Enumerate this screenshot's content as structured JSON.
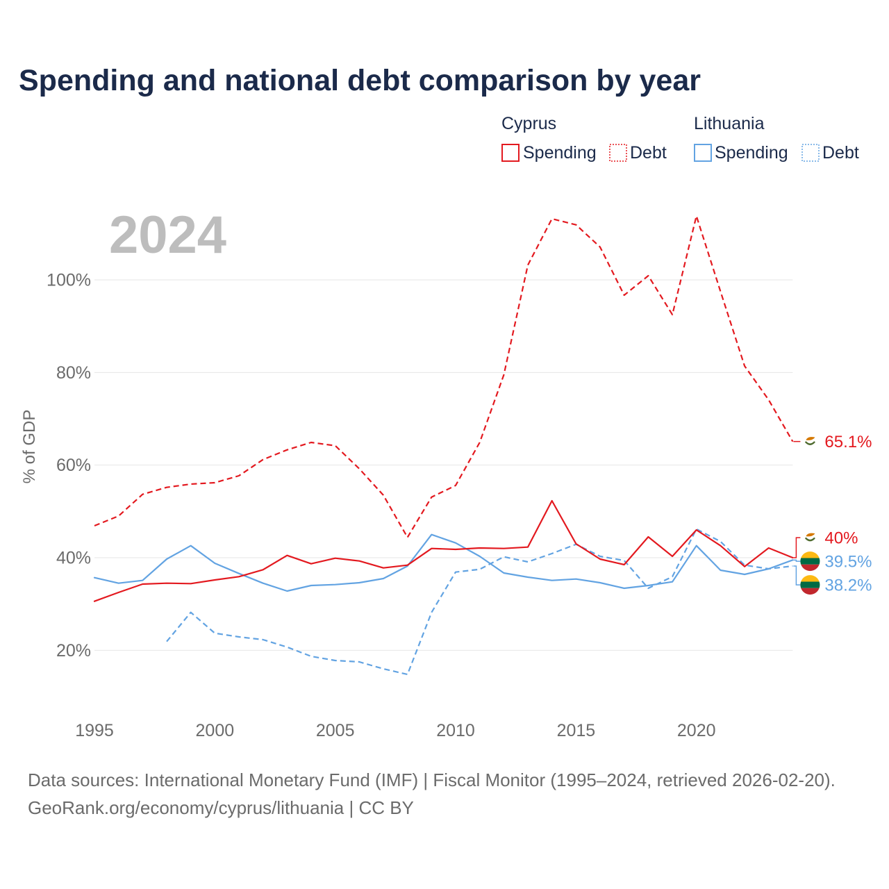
{
  "chart_data": {
    "type": "line",
    "title": "Spending and national debt comparison by year",
    "year_label": "2024",
    "xlabel": "",
    "ylabel": "% of GDP",
    "xlim": [
      1995,
      2024
    ],
    "ylim": [
      10,
      115
    ],
    "grid": true,
    "x": [
      1995,
      1996,
      1997,
      1998,
      1999,
      2000,
      2001,
      2002,
      2003,
      2004,
      2005,
      2006,
      2007,
      2008,
      2009,
      2010,
      2011,
      2012,
      2013,
      2014,
      2015,
      2016,
      2017,
      2018,
      2019,
      2020,
      2021,
      2022,
      2023,
      2024
    ],
    "xticks": [
      {
        "value": 1995,
        "label": "1995"
      },
      {
        "value": 2000,
        "label": "2000"
      },
      {
        "value": 2005,
        "label": "2005"
      },
      {
        "value": 2010,
        "label": "2010"
      },
      {
        "value": 2015,
        "label": "2015"
      },
      {
        "value": 2020,
        "label": "2020"
      }
    ],
    "yticks": [
      {
        "value": 20,
        "label": "20%"
      },
      {
        "value": 40,
        "label": "40%"
      },
      {
        "value": 60,
        "label": "60%"
      },
      {
        "value": 80,
        "label": "80%"
      },
      {
        "value": 100,
        "label": "100%"
      }
    ],
    "legend": {
      "position": "top-right",
      "groups": [
        {
          "label": "Cyprus",
          "color": "#e3191f",
          "items": [
            {
              "label": "Spending",
              "dotted": false
            },
            {
              "label": "Debt",
              "dotted": true
            }
          ]
        },
        {
          "label": "Lithuania",
          "color": "#62a3e2",
          "items": [
            {
              "label": "Spending",
              "dotted": false
            },
            {
              "label": "Debt",
              "dotted": true
            }
          ]
        }
      ]
    },
    "series": [
      {
        "legend_ref": [
          0,
          0
        ],
        "color": "#e3191f",
        "dashed": false,
        "flag_icon": "cyprus-flag-icon",
        "end_label": "40%",
        "values": [
          30.6,
          32.5,
          34.3,
          34.5,
          34.4,
          35.2,
          35.9,
          37.4,
          40.5,
          38.7,
          39.9,
          39.3,
          37.8,
          38.4,
          42.0,
          41.8,
          42.1,
          42.0,
          42.3,
          52.3,
          43.0,
          39.7,
          38.5,
          44.5,
          40.3,
          46.0,
          42.6,
          38.1,
          42.1,
          40.0
        ]
      },
      {
        "legend_ref": [
          0,
          1
        ],
        "color": "#e3191f",
        "dashed": true,
        "flag_icon": "cyprus-flag-icon",
        "end_label": "65.1%",
        "values": [
          46.9,
          49.0,
          53.7,
          55.2,
          55.9,
          56.2,
          57.7,
          61.2,
          63.3,
          64.9,
          64.2,
          59.2,
          53.5,
          44.4,
          53.1,
          55.6,
          64.9,
          79.5,
          103.2,
          113.2,
          111.9,
          107.1,
          96.7,
          100.9,
          92.5,
          113.8,
          97.5,
          81.4,
          74.1,
          65.1
        ]
      },
      {
        "legend_ref": [
          1,
          0
        ],
        "color": "#62a3e2",
        "dashed": false,
        "flag_icon": "lithuania-flag-icon",
        "end_label": "39.5%",
        "values": [
          35.7,
          34.5,
          35.1,
          39.7,
          42.6,
          38.8,
          36.6,
          34.5,
          32.8,
          34.0,
          34.2,
          34.6,
          35.5,
          38.2,
          45.0,
          43.2,
          40.3,
          36.7,
          35.8,
          35.1,
          35.4,
          34.6,
          33.4,
          34.0,
          34.8,
          42.6,
          37.3,
          36.4,
          37.6,
          39.5
        ]
      },
      {
        "legend_ref": [
          1,
          1
        ],
        "color": "#62a3e2",
        "dashed": true,
        "flag_icon": "lithuania-flag-icon",
        "end_label": "38.2%",
        "values": [
          null,
          null,
          null,
          21.9,
          28.2,
          23.7,
          22.9,
          22.3,
          20.7,
          18.7,
          17.8,
          17.5,
          16.0,
          14.8,
          28.2,
          36.9,
          37.5,
          40.2,
          39.1,
          40.9,
          42.9,
          40.3,
          39.4,
          33.4,
          35.9,
          46.2,
          43.5,
          38.4,
          37.6,
          38.2
        ]
      }
    ]
  },
  "footer": {
    "source": "Data sources: International Monetary Fund (IMF) | Fiscal Monitor (1995–2024, retrieved 2026-02-20).",
    "credit": "GeoRank.org/economy/cyprus/lithuania | CC BY"
  }
}
